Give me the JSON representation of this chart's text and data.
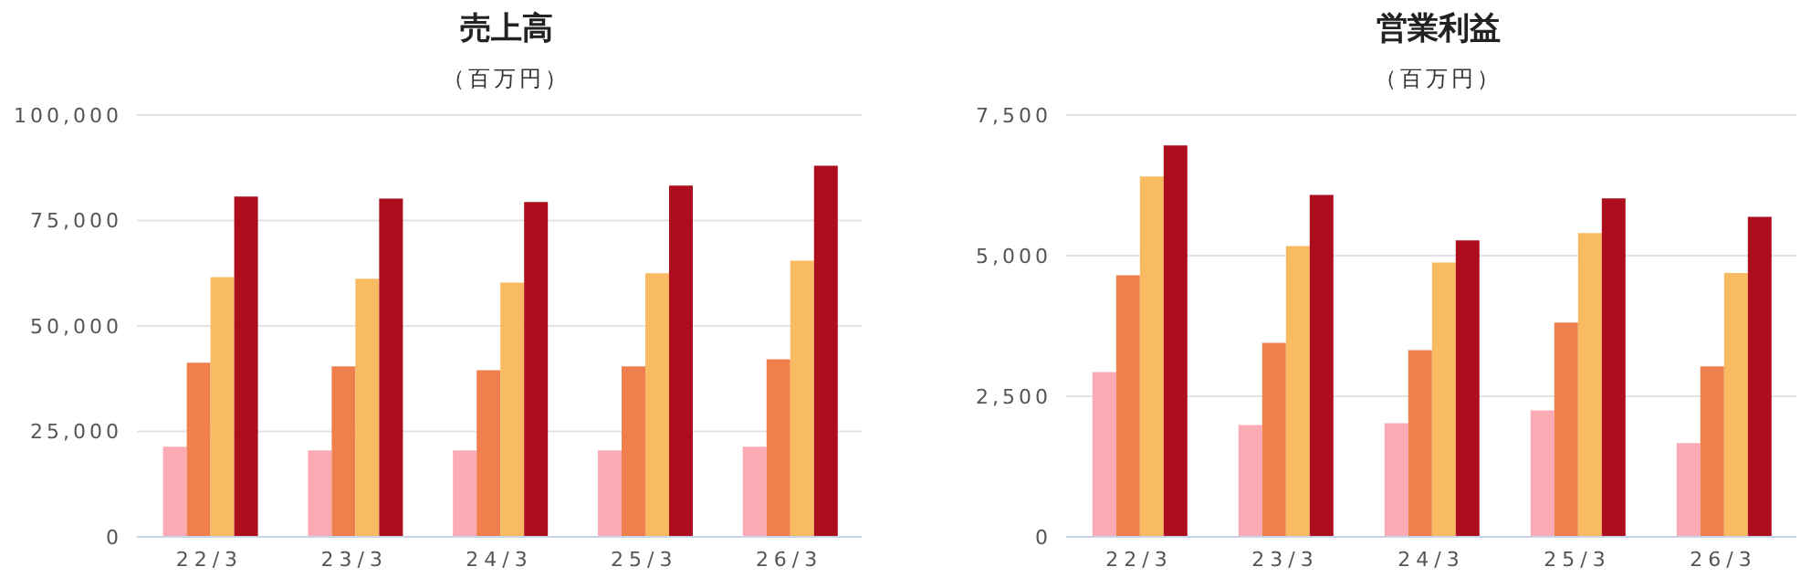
{
  "chart_data": [
    {
      "type": "bar",
      "title": "売上高",
      "subtitle": "（百万円）",
      "categories": [
        "22/3",
        "23/3",
        "24/3",
        "25/3",
        "26/3"
      ],
      "series": [
        {
          "color": "#fcaab3",
          "values": [
            21400,
            20500,
            20500,
            20500,
            21400
          ]
        },
        {
          "color": "#ef7f4c",
          "values": [
            41300,
            40400,
            39500,
            40400,
            42100
          ]
        },
        {
          "color": "#f9bb62",
          "values": [
            61600,
            61200,
            60300,
            62500,
            65500
          ]
        },
        {
          "color": "#ad0e1d",
          "values": [
            80700,
            80200,
            79400,
            83300,
            88000
          ]
        }
      ],
      "ylim": [
        0,
        100000
      ],
      "yticks": [
        0,
        {
          "value": 25000,
          "label": "25,000"
        },
        {
          "value": 50000,
          "label": "50,000"
        },
        {
          "value": 75000,
          "label": "75,000"
        },
        {
          "value": 100000,
          "label": "100,000"
        }
      ],
      "grid": "y",
      "legend": false
    },
    {
      "type": "bar",
      "title": "営業利益",
      "subtitle": "（百万円）",
      "categories": [
        "22/3",
        "23/3",
        "24/3",
        "25/3",
        "26/3"
      ],
      "series": [
        {
          "color": "#fcaab3",
          "values": [
            2930,
            1990,
            2020,
            2250,
            1670
          ]
        },
        {
          "color": "#ef7f4c",
          "values": [
            4650,
            3450,
            3320,
            3810,
            3030
          ]
        },
        {
          "color": "#f9bb62",
          "values": [
            6410,
            5170,
            4880,
            5400,
            4690
          ]
        },
        {
          "color": "#ad0e1d",
          "values": [
            6960,
            6080,
            5270,
            6020,
            5690
          ]
        }
      ],
      "ylim": [
        0,
        7500
      ],
      "yticks": [
        0,
        {
          "value": 2500,
          "label": "2,500"
        },
        {
          "value": 5000,
          "label": "5,000"
        },
        {
          "value": 7500,
          "label": "7,500"
        }
      ],
      "grid": "y",
      "legend": false
    }
  ]
}
